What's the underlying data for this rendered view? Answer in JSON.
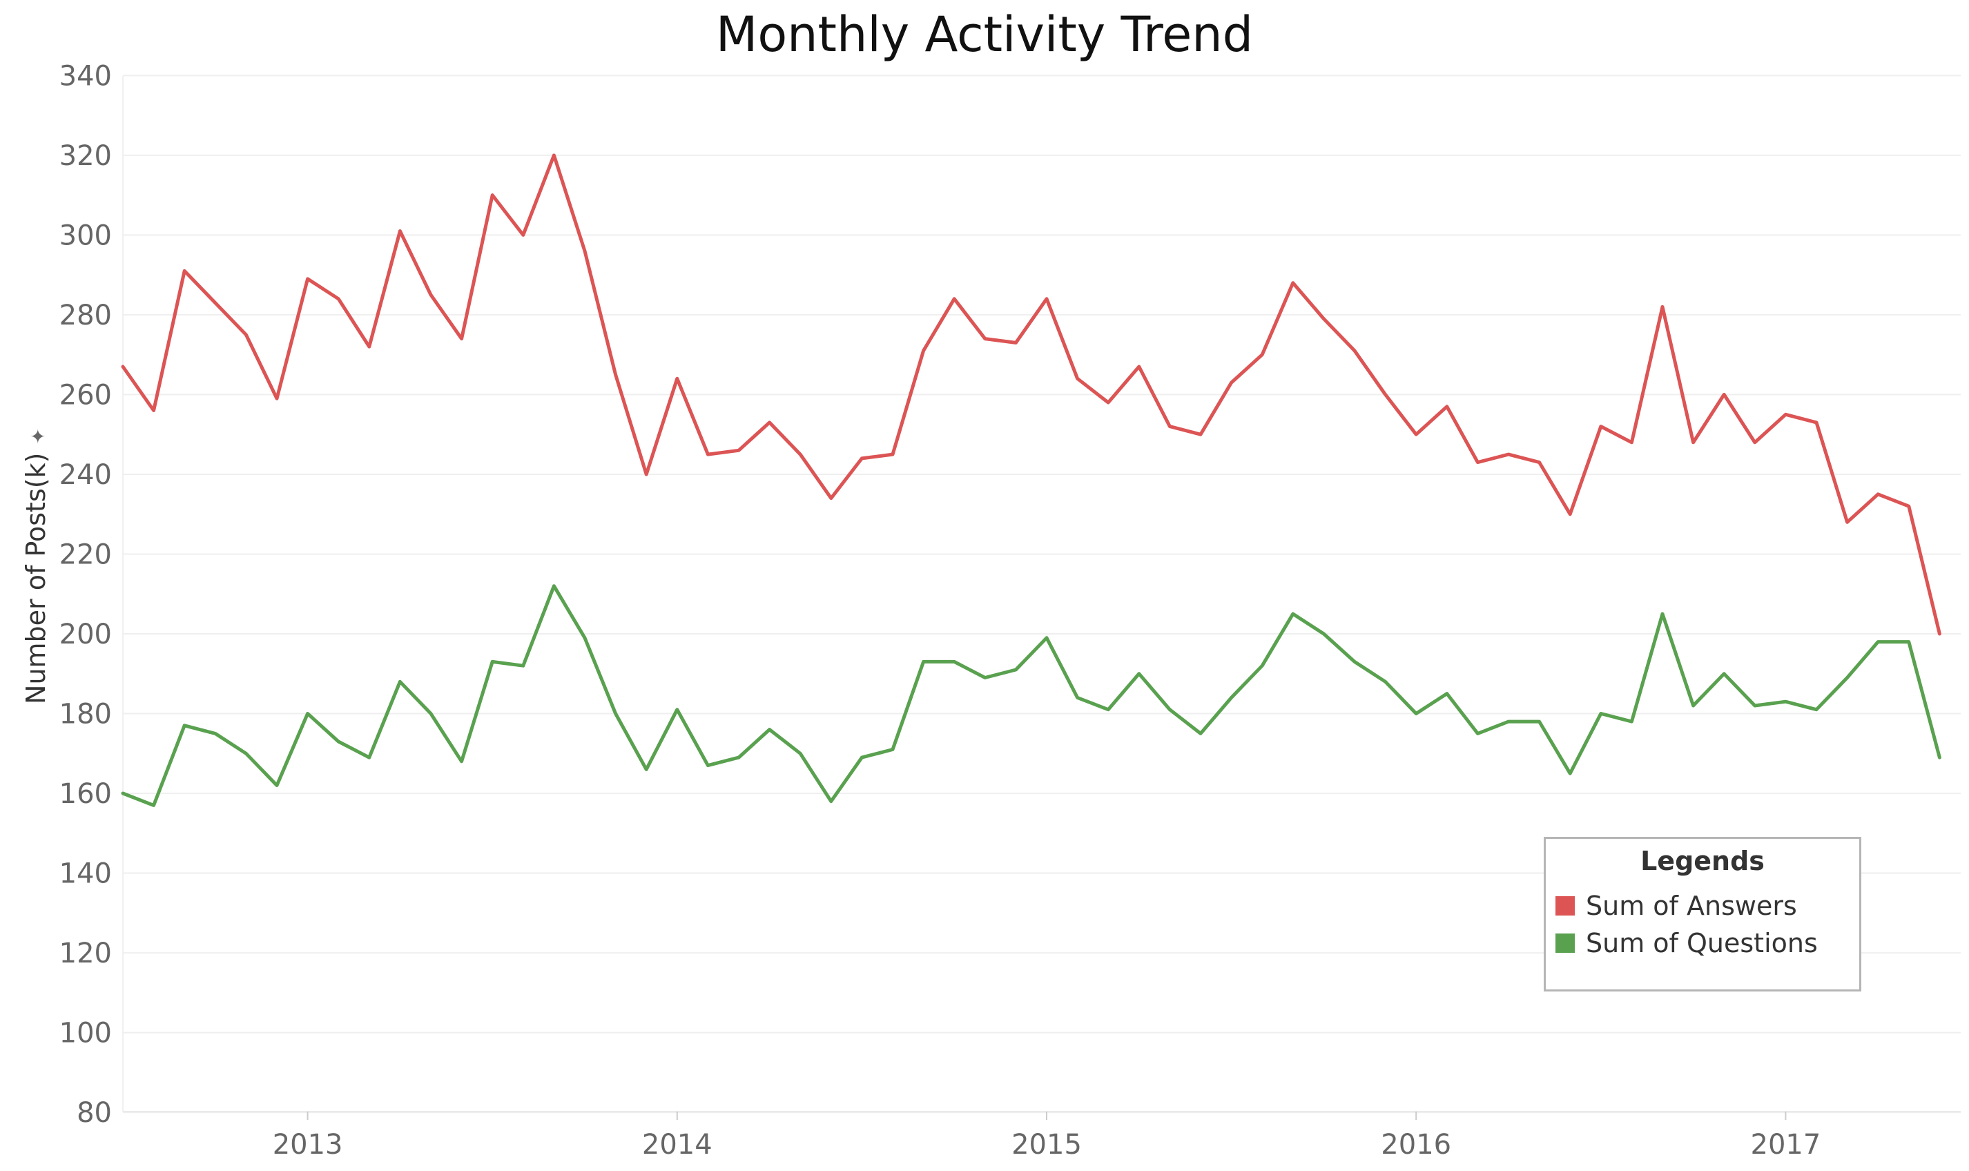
{
  "chart_data": {
    "type": "line",
    "title": "Monthly Activity Trend",
    "xlabel": "",
    "ylabel": "Number of Posts(k)",
    "ylim": [
      75,
      345
    ],
    "y_ticks": [
      340,
      320,
      300,
      280,
      260,
      240,
      220,
      200,
      180,
      160,
      140,
      120,
      100,
      80
    ],
    "x_ticks": [
      "2013",
      "2014",
      "2015",
      "2016",
      "2017"
    ],
    "x_start": "2012-07",
    "x_end": "2017-06",
    "grid": true,
    "legend": {
      "title": "Legends",
      "position": "bottom-right"
    },
    "series": [
      {
        "name": "Sum of Answers",
        "color": "#dc5454",
        "x": [
          "2012-07",
          "2012-08",
          "2012-09",
          "2012-10",
          "2012-11",
          "2012-12",
          "2013-01",
          "2013-02",
          "2013-03",
          "2013-04",
          "2013-05",
          "2013-06",
          "2013-07",
          "2013-08",
          "2013-09",
          "2013-10",
          "2013-11",
          "2013-12",
          "2014-01",
          "2014-02",
          "2014-03",
          "2014-04",
          "2014-05",
          "2014-06",
          "2014-07",
          "2014-08",
          "2014-09",
          "2014-10",
          "2014-11",
          "2014-12",
          "2015-01",
          "2015-02",
          "2015-03",
          "2015-04",
          "2015-05",
          "2015-06",
          "2015-07",
          "2015-08",
          "2015-09",
          "2015-10",
          "2015-11",
          "2015-12",
          "2016-01",
          "2016-02",
          "2016-03",
          "2016-04",
          "2016-05",
          "2016-06",
          "2016-07",
          "2016-08",
          "2016-09",
          "2016-10",
          "2016-11",
          "2016-12",
          "2017-01",
          "2017-02",
          "2017-03",
          "2017-04",
          "2017-05",
          "2017-06"
        ],
        "values": [
          267,
          256,
          291,
          283,
          275,
          259,
          289,
          284,
          272,
          301,
          285,
          274,
          310,
          300,
          320,
          296,
          265,
          240,
          264,
          245,
          246,
          253,
          245,
          234,
          244,
          245,
          271,
          284,
          274,
          273,
          284,
          264,
          258,
          267,
          252,
          250,
          263,
          270,
          288,
          279,
          271,
          260,
          250,
          257,
          243,
          245,
          243,
          230,
          252,
          248,
          282,
          248,
          260,
          248,
          255,
          253,
          228,
          235,
          232,
          200
        ]
      },
      {
        "name": "Sum of Questions",
        "color": "#59a14f",
        "x": [
          "2012-07",
          "2012-08",
          "2012-09",
          "2012-10",
          "2012-11",
          "2012-12",
          "2013-01",
          "2013-02",
          "2013-03",
          "2013-04",
          "2013-05",
          "2013-06",
          "2013-07",
          "2013-08",
          "2013-09",
          "2013-10",
          "2013-11",
          "2013-12",
          "2014-01",
          "2014-02",
          "2014-03",
          "2014-04",
          "2014-05",
          "2014-06",
          "2014-07",
          "2014-08",
          "2014-09",
          "2014-10",
          "2014-11",
          "2014-12",
          "2015-01",
          "2015-02",
          "2015-03",
          "2015-04",
          "2015-05",
          "2015-06",
          "2015-07",
          "2015-08",
          "2015-09",
          "2015-10",
          "2015-11",
          "2015-12",
          "2016-01",
          "2016-02",
          "2016-03",
          "2016-04",
          "2016-05",
          "2016-06",
          "2016-07",
          "2016-08",
          "2016-09",
          "2016-10",
          "2016-11",
          "2016-12",
          "2017-01",
          "2017-02",
          "2017-03",
          "2017-04",
          "2017-05",
          "2017-06"
        ],
        "values": [
          160,
          157,
          177,
          175,
          170,
          162,
          180,
          173,
          169,
          188,
          180,
          168,
          193,
          192,
          212,
          199,
          180,
          166,
          181,
          167,
          169,
          176,
          170,
          158,
          169,
          171,
          193,
          193,
          189,
          191,
          199,
          184,
          181,
          190,
          181,
          175,
          184,
          192,
          205,
          200,
          193,
          188,
          180,
          185,
          175,
          178,
          178,
          165,
          180,
          178,
          205,
          182,
          190,
          182,
          183,
          181,
          189,
          198,
          198,
          169
        ]
      }
    ]
  }
}
